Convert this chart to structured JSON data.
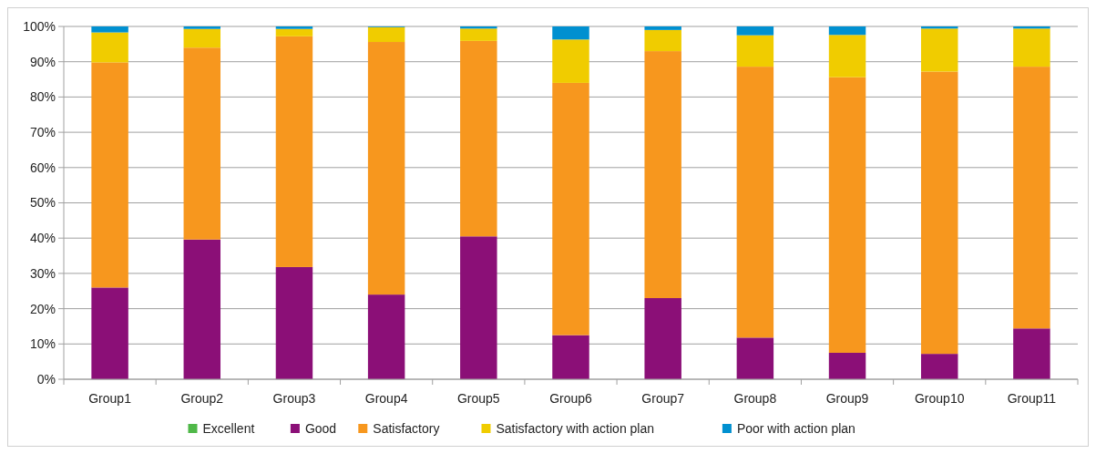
{
  "chart_data": {
    "type": "bar",
    "stacked": true,
    "categories": [
      "Group1",
      "Group2",
      "Group3",
      "Group4",
      "Group5",
      "Group6",
      "Group7",
      "Group8",
      "Group9",
      "Group10",
      "Group11"
    ],
    "series": [
      {
        "name": "Excellent",
        "color": "#4fb848",
        "values": [
          0,
          0,
          0,
          0,
          0,
          0,
          0,
          0,
          0,
          0,
          0
        ]
      },
      {
        "name": "Good",
        "color": "#8b0f77",
        "values": [
          26,
          39.6,
          31.8,
          24,
          40.5,
          12.5,
          23,
          11.8,
          7.5,
          7.2,
          14.4
        ]
      },
      {
        "name": "Satisfactory",
        "color": "#f7971e",
        "values": [
          63.8,
          54.4,
          65.4,
          71.6,
          55.4,
          71.5,
          70,
          76.8,
          78.1,
          80,
          74.2
        ]
      },
      {
        "name": "Satisfactory with action plan",
        "color": "#f0cc00",
        "values": [
          8.5,
          5.3,
          2.1,
          4.2,
          3.5,
          12.3,
          6,
          8.9,
          12,
          12.2,
          10.8
        ]
      },
      {
        "name": "Poor with action plan",
        "color": "#0090d0",
        "values": [
          1.7,
          0.7,
          0.7,
          0.2,
          0.6,
          3.7,
          1,
          2.5,
          2.4,
          0.6,
          0.6
        ]
      }
    ],
    "ylim": [
      0,
      100
    ],
    "yticks": [
      {
        "value": 0,
        "label": "0%"
      },
      {
        "value": 10,
        "label": "10%"
      },
      {
        "value": 20,
        "label": "20%"
      },
      {
        "value": 30,
        "label": "30%"
      },
      {
        "value": 40,
        "label": "40%"
      },
      {
        "value": 50,
        "label": "50%"
      },
      {
        "value": 60,
        "label": "60%"
      },
      {
        "value": 70,
        "label": "70%"
      },
      {
        "value": 80,
        "label": "80%"
      },
      {
        "value": 90,
        "label": "90%"
      },
      {
        "value": 100,
        "label": "100%"
      }
    ],
    "grid": "y",
    "legend": "bottom"
  }
}
